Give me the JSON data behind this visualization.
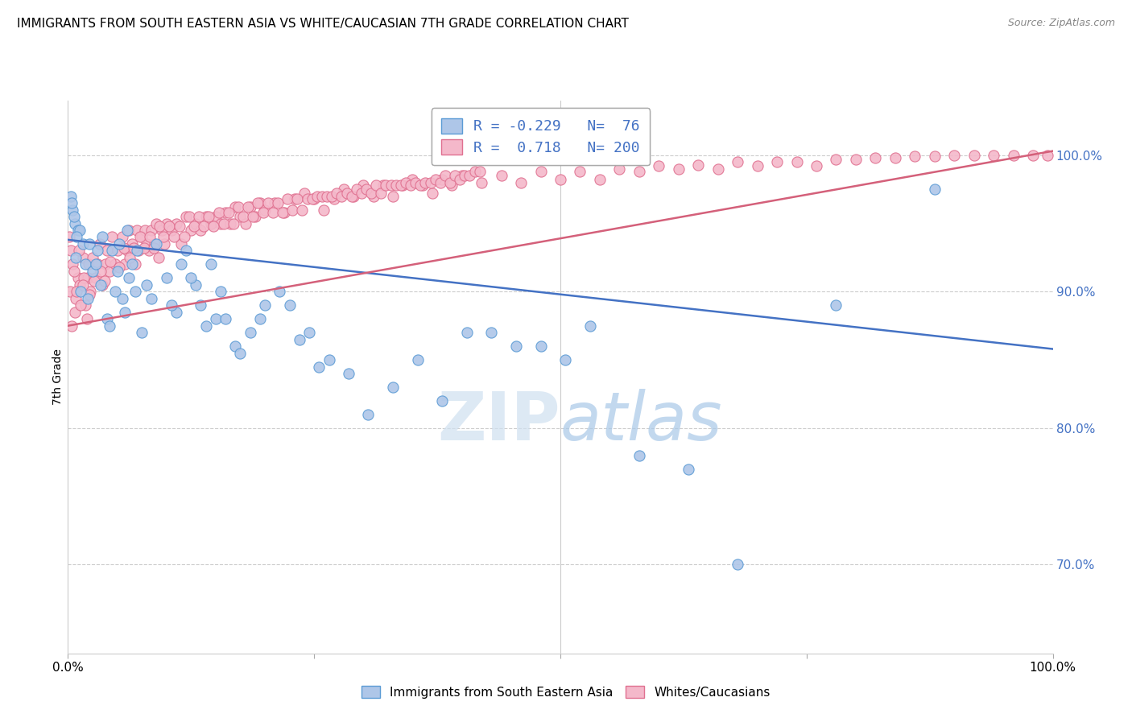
{
  "title": "IMMIGRANTS FROM SOUTH EASTERN ASIA VS WHITE/CAUCASIAN 7TH GRADE CORRELATION CHART",
  "source": "Source: ZipAtlas.com",
  "ylabel": "7th Grade",
  "legend_blue_label": "Immigrants from South Eastern Asia",
  "legend_pink_label": "Whites/Caucasians",
  "blue_R": -0.229,
  "blue_N": 76,
  "pink_R": 0.718,
  "pink_N": 200,
  "blue_color": "#aec6e8",
  "blue_edge_color": "#5b9bd5",
  "blue_line_color": "#4472c4",
  "pink_color": "#f4b8ca",
  "pink_edge_color": "#e07090",
  "pink_line_color": "#d4607a",
  "right_label_color": "#4472c4",
  "ylim_min": 0.635,
  "ylim_max": 1.04,
  "xlim_min": 0.0,
  "xlim_max": 1.0,
  "blue_trend_x0": 0.0,
  "blue_trend_x1": 1.0,
  "blue_trend_y0": 0.938,
  "blue_trend_y1": 0.858,
  "pink_trend_x0": 0.0,
  "pink_trend_x1": 1.0,
  "pink_trend_y0": 0.875,
  "pink_trend_y1": 1.003,
  "blue_scatter_x": [
    0.005,
    0.007,
    0.003,
    0.01,
    0.006,
    0.012,
    0.015,
    0.008,
    0.004,
    0.009,
    0.018,
    0.022,
    0.013,
    0.025,
    0.03,
    0.02,
    0.035,
    0.04,
    0.028,
    0.033,
    0.045,
    0.05,
    0.055,
    0.06,
    0.065,
    0.042,
    0.048,
    0.052,
    0.058,
    0.062,
    0.07,
    0.08,
    0.075,
    0.085,
    0.09,
    0.1,
    0.11,
    0.068,
    0.105,
    0.115,
    0.12,
    0.13,
    0.14,
    0.15,
    0.125,
    0.135,
    0.145,
    0.155,
    0.16,
    0.17,
    0.185,
    0.2,
    0.175,
    0.195,
    0.215,
    0.235,
    0.255,
    0.225,
    0.245,
    0.265,
    0.285,
    0.33,
    0.38,
    0.43,
    0.48,
    0.53,
    0.305,
    0.355,
    0.405,
    0.455,
    0.505,
    0.58,
    0.63,
    0.68,
    0.78,
    0.88
  ],
  "blue_scatter_y": [
    0.96,
    0.95,
    0.97,
    0.945,
    0.955,
    0.945,
    0.935,
    0.925,
    0.965,
    0.94,
    0.92,
    0.935,
    0.9,
    0.915,
    0.93,
    0.895,
    0.94,
    0.88,
    0.92,
    0.905,
    0.93,
    0.915,
    0.895,
    0.945,
    0.92,
    0.875,
    0.9,
    0.935,
    0.885,
    0.91,
    0.93,
    0.905,
    0.87,
    0.895,
    0.935,
    0.91,
    0.885,
    0.9,
    0.89,
    0.92,
    0.93,
    0.905,
    0.875,
    0.88,
    0.91,
    0.89,
    0.92,
    0.9,
    0.88,
    0.86,
    0.87,
    0.89,
    0.855,
    0.88,
    0.9,
    0.865,
    0.845,
    0.89,
    0.87,
    0.85,
    0.84,
    0.83,
    0.82,
    0.87,
    0.86,
    0.875,
    0.81,
    0.85,
    0.87,
    0.86,
    0.85,
    0.78,
    0.77,
    0.7,
    0.89,
    0.975
  ],
  "pink_scatter_x": [
    0.002,
    0.005,
    0.008,
    0.01,
    0.003,
    0.007,
    0.012,
    0.015,
    0.018,
    0.02,
    0.001,
    0.004,
    0.006,
    0.009,
    0.011,
    0.013,
    0.016,
    0.019,
    0.021,
    0.023,
    0.025,
    0.028,
    0.03,
    0.032,
    0.035,
    0.038,
    0.04,
    0.042,
    0.045,
    0.048,
    0.05,
    0.055,
    0.058,
    0.06,
    0.062,
    0.065,
    0.068,
    0.07,
    0.072,
    0.075,
    0.078,
    0.08,
    0.082,
    0.085,
    0.088,
    0.09,
    0.092,
    0.095,
    0.098,
    0.1,
    0.105,
    0.11,
    0.115,
    0.12,
    0.125,
    0.13,
    0.135,
    0.14,
    0.145,
    0.15,
    0.155,
    0.16,
    0.165,
    0.17,
    0.175,
    0.18,
    0.185,
    0.19,
    0.195,
    0.2,
    0.21,
    0.22,
    0.23,
    0.24,
    0.25,
    0.26,
    0.27,
    0.28,
    0.29,
    0.3,
    0.31,
    0.32,
    0.33,
    0.34,
    0.35,
    0.36,
    0.37,
    0.38,
    0.39,
    0.4,
    0.42,
    0.44,
    0.46,
    0.48,
    0.5,
    0.52,
    0.54,
    0.56,
    0.58,
    0.6,
    0.62,
    0.64,
    0.66,
    0.68,
    0.7,
    0.72,
    0.74,
    0.76,
    0.78,
    0.8,
    0.82,
    0.84,
    0.86,
    0.88,
    0.9,
    0.92,
    0.94,
    0.96,
    0.98,
    0.995,
    0.015,
    0.022,
    0.027,
    0.033,
    0.037,
    0.043,
    0.052,
    0.057,
    0.063,
    0.067,
    0.073,
    0.077,
    0.083,
    0.087,
    0.093,
    0.097,
    0.103,
    0.108,
    0.113,
    0.118,
    0.123,
    0.128,
    0.133,
    0.138,
    0.143,
    0.148,
    0.153,
    0.158,
    0.163,
    0.168,
    0.173,
    0.178,
    0.183,
    0.188,
    0.193,
    0.198,
    0.203,
    0.208,
    0.213,
    0.218,
    0.223,
    0.228,
    0.233,
    0.238,
    0.243,
    0.248,
    0.253,
    0.258,
    0.263,
    0.268,
    0.273,
    0.278,
    0.283,
    0.288,
    0.293,
    0.298,
    0.303,
    0.308,
    0.313,
    0.318,
    0.323,
    0.328,
    0.333,
    0.338,
    0.343,
    0.348,
    0.353,
    0.358,
    0.363,
    0.368,
    0.373,
    0.378,
    0.383,
    0.388,
    0.393,
    0.398,
    0.403,
    0.408,
    0.413,
    0.418
  ],
  "pink_scatter_y": [
    0.9,
    0.92,
    0.895,
    0.91,
    0.93,
    0.885,
    0.905,
    0.925,
    0.89,
    0.91,
    0.94,
    0.875,
    0.915,
    0.9,
    0.93,
    0.89,
    0.91,
    0.88,
    0.92,
    0.9,
    0.925,
    0.91,
    0.92,
    0.935,
    0.905,
    0.92,
    0.93,
    0.915,
    0.94,
    0.92,
    0.93,
    0.94,
    0.92,
    0.93,
    0.945,
    0.935,
    0.92,
    0.945,
    0.93,
    0.94,
    0.945,
    0.935,
    0.93,
    0.945,
    0.935,
    0.95,
    0.925,
    0.945,
    0.935,
    0.95,
    0.945,
    0.95,
    0.935,
    0.955,
    0.945,
    0.95,
    0.945,
    0.955,
    0.95,
    0.955,
    0.95,
    0.958,
    0.95,
    0.962,
    0.955,
    0.95,
    0.962,
    0.955,
    0.965,
    0.96,
    0.965,
    0.958,
    0.968,
    0.972,
    0.968,
    0.96,
    0.968,
    0.975,
    0.97,
    0.978,
    0.97,
    0.978,
    0.97,
    0.978,
    0.982,
    0.978,
    0.972,
    0.982,
    0.978,
    0.985,
    0.98,
    0.985,
    0.98,
    0.988,
    0.982,
    0.988,
    0.982,
    0.99,
    0.988,
    0.992,
    0.99,
    0.993,
    0.99,
    0.995,
    0.992,
    0.995,
    0.995,
    0.992,
    0.997,
    0.997,
    0.998,
    0.998,
    0.999,
    0.999,
    1.0,
    1.0,
    1.0,
    1.0,
    1.0,
    1.0,
    0.905,
    0.898,
    0.908,
    0.915,
    0.908,
    0.922,
    0.918,
    0.932,
    0.925,
    0.932,
    0.94,
    0.932,
    0.94,
    0.932,
    0.948,
    0.94,
    0.948,
    0.94,
    0.948,
    0.94,
    0.955,
    0.948,
    0.955,
    0.948,
    0.955,
    0.948,
    0.958,
    0.95,
    0.958,
    0.95,
    0.962,
    0.955,
    0.962,
    0.955,
    0.965,
    0.958,
    0.965,
    0.958,
    0.965,
    0.958,
    0.968,
    0.96,
    0.968,
    0.96,
    0.968,
    0.968,
    0.97,
    0.97,
    0.97,
    0.97,
    0.972,
    0.97,
    0.972,
    0.97,
    0.975,
    0.972,
    0.975,
    0.972,
    0.978,
    0.972,
    0.978,
    0.978,
    0.978,
    0.978,
    0.98,
    0.978,
    0.98,
    0.978,
    0.98,
    0.98,
    0.982,
    0.98,
    0.985,
    0.98,
    0.985,
    0.982,
    0.985,
    0.985,
    0.988,
    0.988
  ]
}
